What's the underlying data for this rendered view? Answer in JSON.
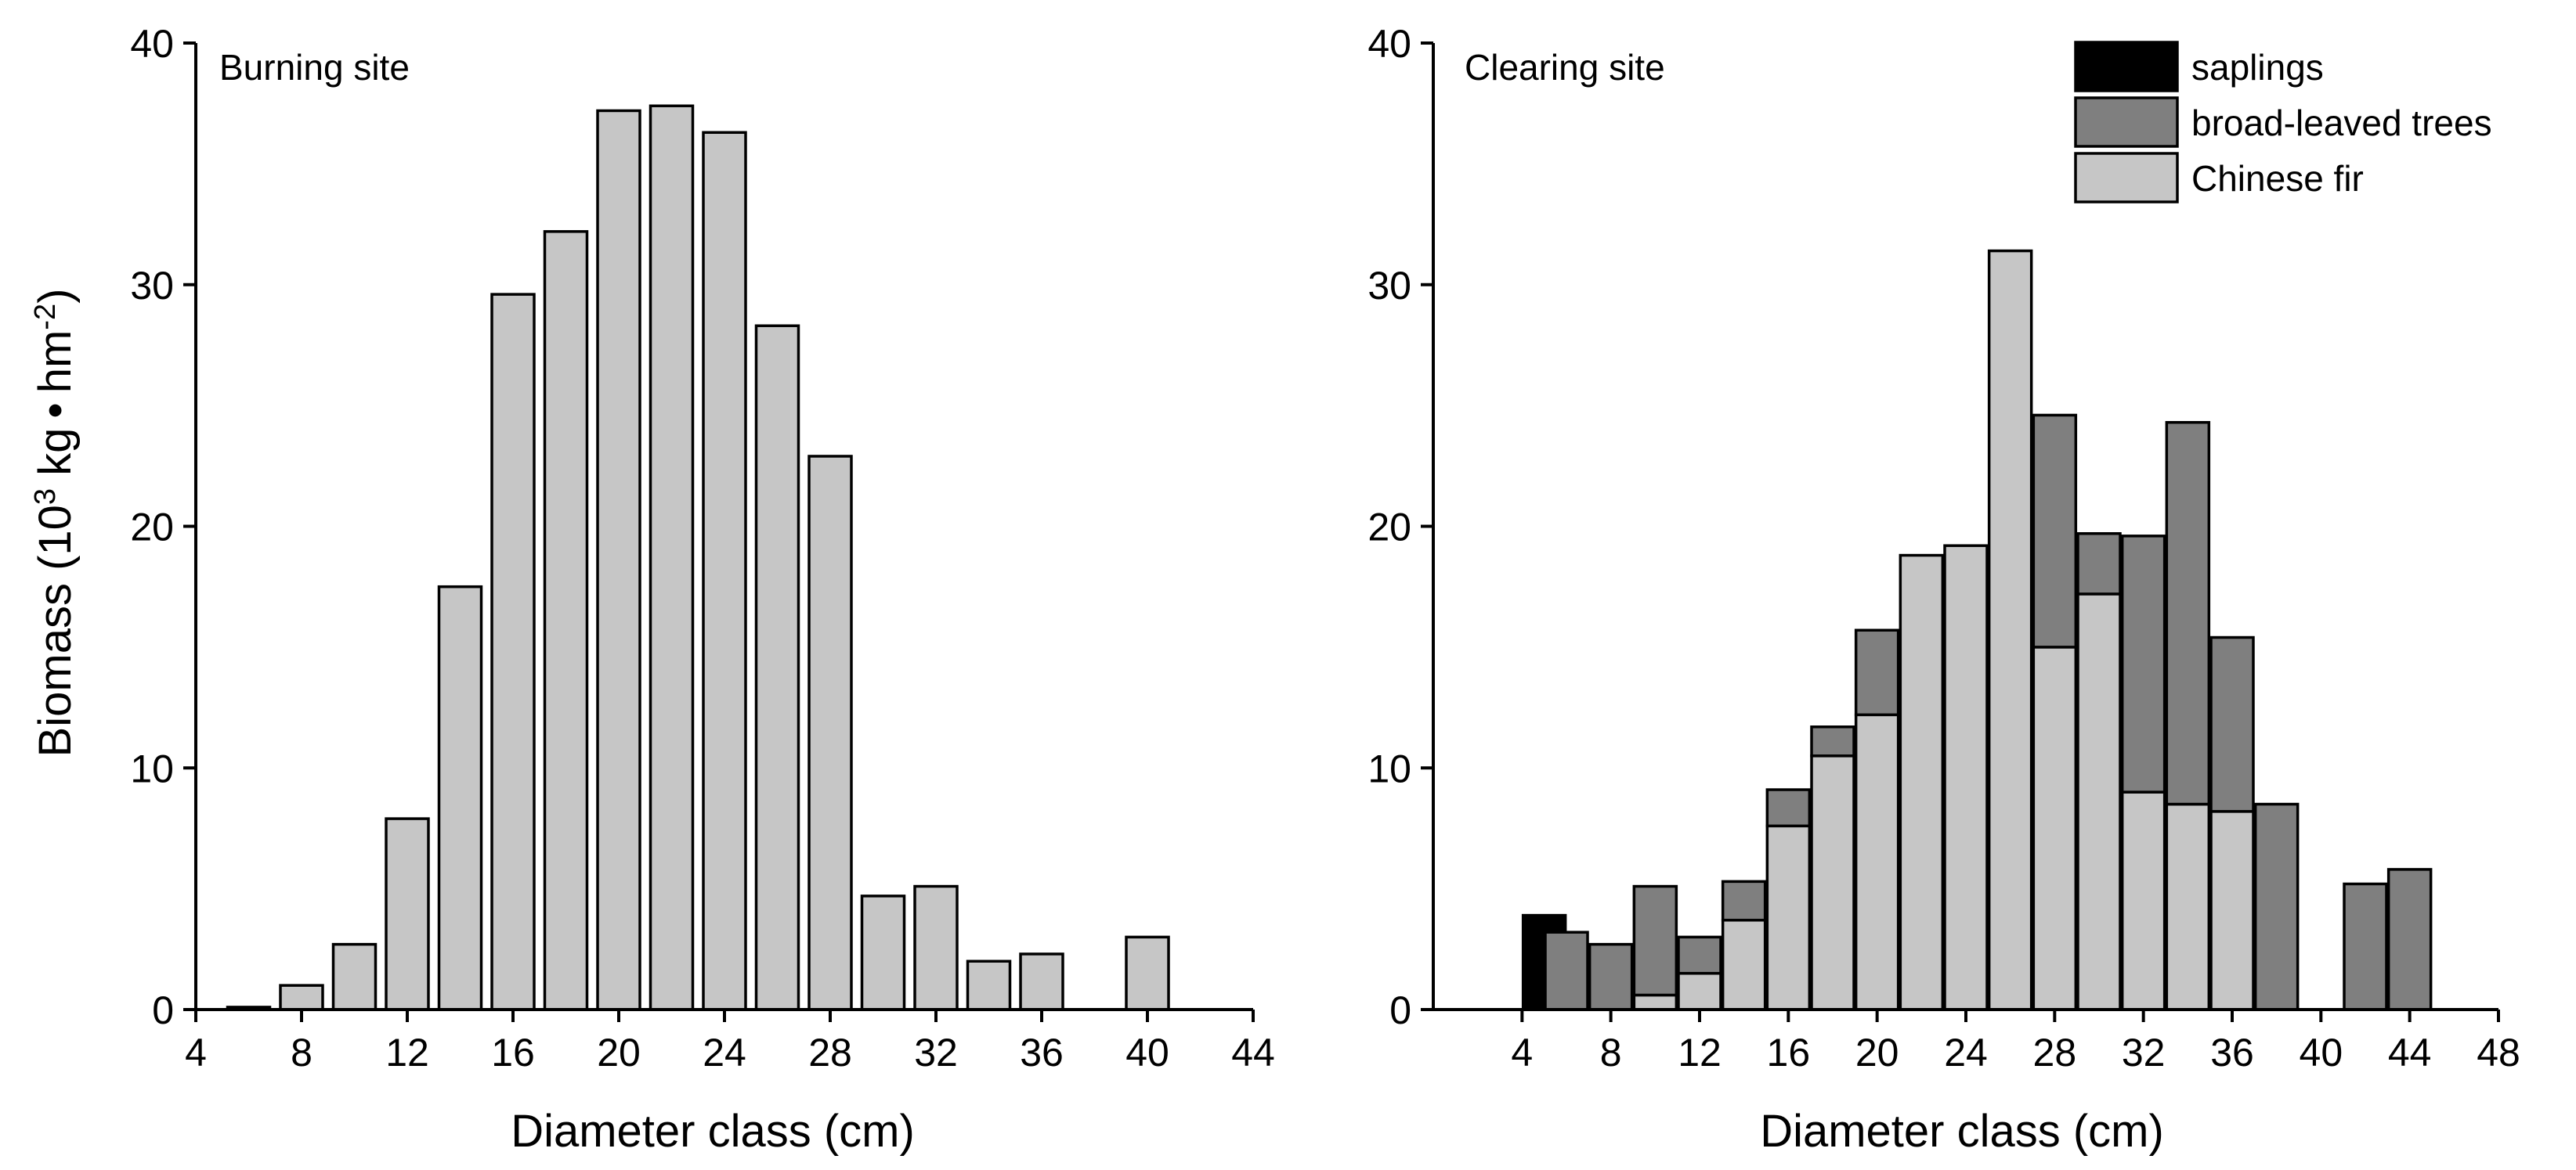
{
  "colors": {
    "saplings": "#000000",
    "broad_leaved": "#7f7f7f",
    "chinese_fir": "#c6c6c6",
    "axis": "#000000"
  },
  "y_axis": {
    "title_main": "Biomass (10",
    "title_sup1": "3",
    "title_mid": " kg",
    "title_dot": "•",
    "title_hm": "hm",
    "title_sup2": "-2",
    "title_close": ")"
  },
  "chart_data": [
    {
      "type": "bar",
      "panel_label": "Burning site",
      "xlabel": "Diameter class (cm)",
      "xlim": [
        4,
        44
      ],
      "xticks": [
        "4",
        "8",
        "12",
        "16",
        "20",
        "24",
        "28",
        "32",
        "36",
        "40",
        "44"
      ],
      "ylim": [
        0,
        40
      ],
      "yticks": [
        "0",
        "10",
        "20",
        "30",
        "40"
      ],
      "x": [
        6,
        8,
        10,
        12,
        14,
        16,
        18,
        20,
        22,
        24,
        26,
        28,
        30,
        32,
        34,
        36,
        40
      ],
      "series": [
        {
          "key": "chinese_fir",
          "values": [
            0.1,
            1.0,
            2.7,
            7.9,
            17.5,
            29.6,
            32.2,
            37.2,
            37.4,
            36.3,
            28.3,
            22.9,
            4.7,
            5.1,
            2.0,
            2.3,
            3.0
          ]
        }
      ]
    },
    {
      "type": "bar",
      "stacked": true,
      "panel_label": "Clearing site",
      "xlabel": "Diameter class (cm)",
      "xlim": [
        0,
        48
      ],
      "xticks": [
        "4",
        "8",
        "12",
        "16",
        "20",
        "24",
        "28",
        "32",
        "36",
        "40",
        "44",
        "48"
      ],
      "ylim": [
        0,
        40
      ],
      "yticks": [
        "0",
        "10",
        "20",
        "30",
        "40"
      ],
      "x": [
        5,
        6,
        8,
        10,
        12,
        14,
        16,
        18,
        20,
        22,
        24,
        26,
        28,
        30,
        32,
        34,
        36,
        38,
        42,
        44
      ],
      "series": [
        {
          "name": "Chinese fir",
          "key": "chinese_fir",
          "values": [
            0,
            0,
            0,
            0.6,
            1.5,
            3.7,
            7.6,
            10.5,
            12.2,
            18.8,
            19.2,
            31.4,
            15.0,
            17.2,
            9.0,
            8.5,
            8.2,
            0,
            0,
            0
          ]
        },
        {
          "name": "broad-leaved trees",
          "key": "broad_leaved",
          "values": [
            0,
            3.2,
            2.7,
            4.5,
            1.5,
            1.6,
            1.5,
            1.2,
            3.5,
            0,
            0,
            0,
            9.6,
            2.5,
            10.6,
            15.8,
            7.2,
            8.5,
            5.2,
            5.8
          ]
        },
        {
          "name": "saplings",
          "key": "saplings",
          "values": [
            3.9,
            0,
            0,
            0,
            0,
            0,
            0,
            0,
            0,
            0,
            0,
            0,
            0,
            0,
            0,
            0,
            0,
            0,
            0,
            0
          ]
        }
      ],
      "legend": [
        "saplings",
        "broad-leaved trees",
        "Chinese fir"
      ],
      "legend_position": "top-right"
    }
  ]
}
